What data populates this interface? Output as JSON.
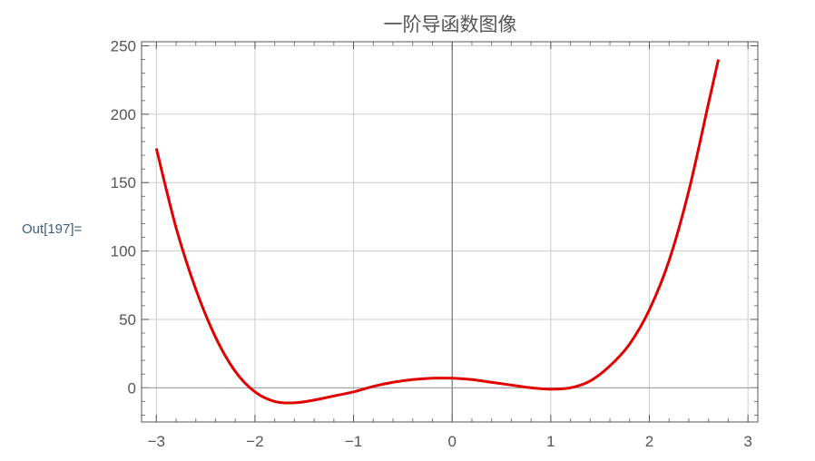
{
  "cell": {
    "out_label": "Out[197]="
  },
  "chart_data": {
    "type": "line",
    "title": "一阶导函数图像",
    "xlabel": "",
    "ylabel": "",
    "xlim": [
      -3.15,
      3.1
    ],
    "ylim": [
      -25,
      253
    ],
    "xticks": [
      -3,
      -2,
      -1,
      0,
      1,
      2,
      3
    ],
    "xtick_labels": [
      "−3",
      "−2",
      "−1",
      "0",
      "1",
      "2",
      "3"
    ],
    "yticks": [
      0,
      50,
      100,
      150,
      200,
      250
    ],
    "ytick_labels": [
      "0",
      "50",
      "100",
      "150",
      "200",
      "250"
    ],
    "grid": true,
    "series": [
      {
        "color": "#e00000",
        "x": [
          -3.0,
          -2.8,
          -2.6,
          -2.4,
          -2.2,
          -2.0,
          -1.8,
          -1.6,
          -1.4,
          -1.2,
          -1.0,
          -0.8,
          -0.6,
          -0.4,
          -0.2,
          0.0,
          0.2,
          0.4,
          0.6,
          0.8,
          1.0,
          1.2,
          1.4,
          1.6,
          1.8,
          2.0,
          2.2,
          2.4,
          2.6,
          2.7
        ],
        "y": [
          175,
          117,
          72,
          37,
          12,
          -3,
          -10,
          -11,
          -9,
          -6,
          -3,
          1,
          4,
          6,
          7,
          7,
          6,
          4,
          2,
          0,
          -1,
          0,
          5,
          16,
          32,
          57,
          93,
          144,
          208,
          240
        ]
      }
    ]
  }
}
